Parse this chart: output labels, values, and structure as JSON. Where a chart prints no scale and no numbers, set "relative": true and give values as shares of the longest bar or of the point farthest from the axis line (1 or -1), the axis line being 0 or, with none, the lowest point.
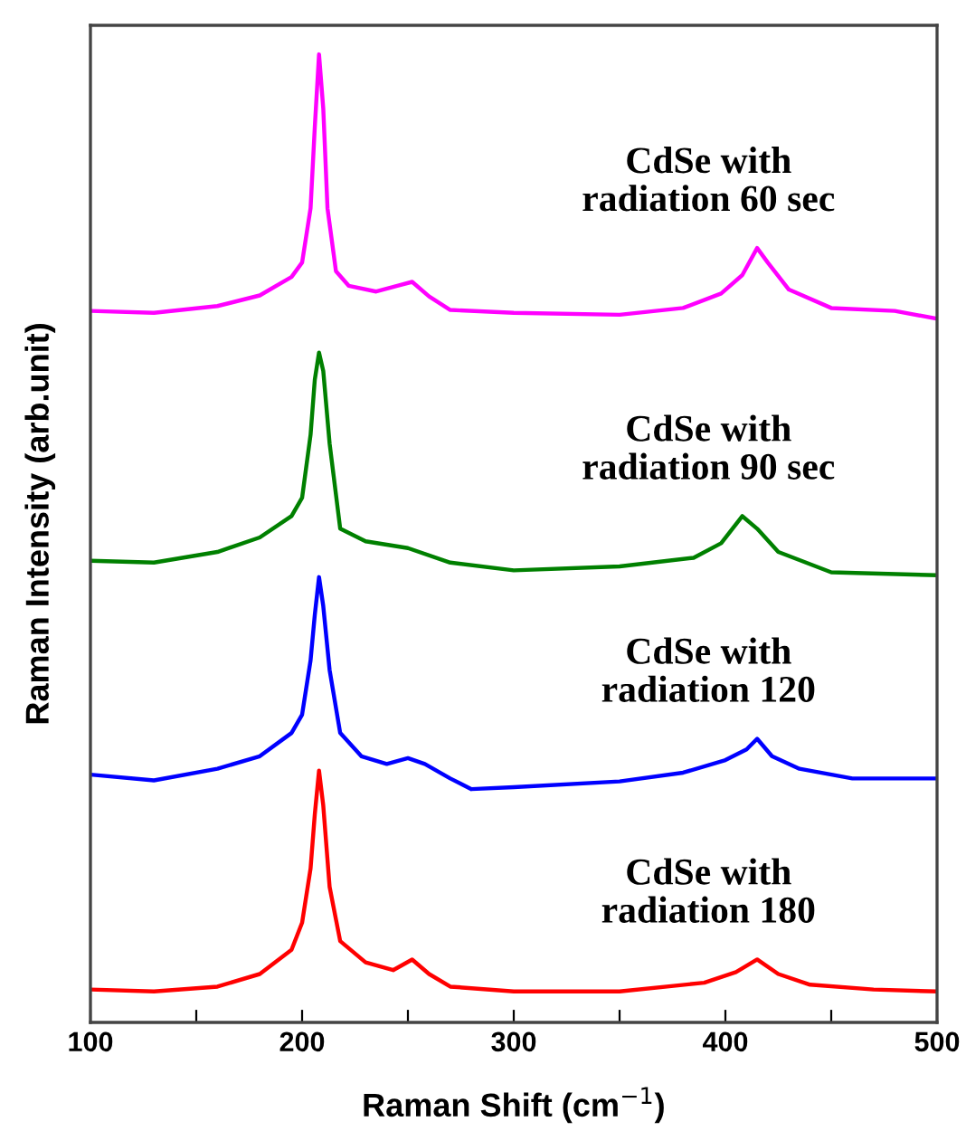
{
  "chart_data": {
    "type": "line",
    "relative": true,
    "xlabel": "Raman Shift (cm$^{−1}$)",
    "ylabel": "Raman Intensity (arb.unit)",
    "xlim": [
      100,
      500
    ],
    "xticks": [
      100,
      {
        "value": 150,
        "label": null
      },
      200,
      {
        "value": 250,
        "label": null
      },
      300,
      {
        "value": 350,
        "label": null
      },
      400,
      {
        "value": 450,
        "label": null
      },
      500
    ],
    "grid": false,
    "legend": false,
    "marker": "none",
    "line_style": "solid",
    "tick_labels": "x",
    "series": [
      {
        "name": "CdSe with\nradiation 60 sec",
        "color": "#ff00ff",
        "x": [
          100,
          130,
          160,
          180,
          195,
          200,
          204,
          206,
          208,
          210,
          212,
          216,
          222,
          235,
          245,
          252,
          260,
          270,
          300,
          350,
          380,
          398,
          408,
          415,
          420,
          430,
          450,
          480,
          500
        ],
        "values": [
          0.735,
          0.733,
          0.74,
          0.751,
          0.77,
          0.785,
          0.841,
          0.925,
          1.0,
          0.944,
          0.841,
          0.776,
          0.761,
          0.755,
          0.761,
          0.765,
          0.75,
          0.736,
          0.733,
          0.731,
          0.738,
          0.753,
          0.772,
          0.8,
          0.785,
          0.757,
          0.738,
          0.735,
          0.727
        ]
      },
      {
        "name": "CdSe with\nradiation 90 sec",
        "color": "#008000",
        "x": [
          100,
          130,
          160,
          180,
          195,
          200,
          204,
          206,
          208,
          210,
          213,
          218,
          230,
          250,
          270,
          300,
          350,
          385,
          398,
          408,
          415,
          425,
          450,
          500
        ],
        "values": [
          0.477,
          0.475,
          0.486,
          0.501,
          0.523,
          0.542,
          0.607,
          0.664,
          0.692,
          0.673,
          0.598,
          0.51,
          0.497,
          0.49,
          0.475,
          0.467,
          0.471,
          0.48,
          0.495,
          0.523,
          0.51,
          0.486,
          0.465,
          0.462
        ]
      },
      {
        "name": "CdSe with\nradiation 120",
        "color": "#0000ff",
        "x": [
          100,
          130,
          160,
          180,
          195,
          200,
          204,
          206,
          208,
          210,
          213,
          218,
          228,
          240,
          250,
          258,
          270,
          280,
          300,
          350,
          380,
          400,
          410,
          415,
          422,
          435,
          460,
          500
        ],
        "values": [
          0.256,
          0.25,
          0.262,
          0.275,
          0.299,
          0.318,
          0.374,
          0.421,
          0.46,
          0.43,
          0.364,
          0.299,
          0.275,
          0.267,
          0.273,
          0.267,
          0.252,
          0.241,
          0.243,
          0.249,
          0.258,
          0.271,
          0.282,
          0.293,
          0.275,
          0.262,
          0.252,
          0.252
        ]
      },
      {
        "name": "CdSe with\nradiation 180",
        "color": "#ff0000",
        "x": [
          100,
          130,
          160,
          180,
          195,
          200,
          204,
          206,
          208,
          210,
          213,
          218,
          230,
          243,
          252,
          260,
          270,
          300,
          350,
          390,
          405,
          415,
          425,
          440,
          470,
          500
        ],
        "values": [
          0.034,
          0.032,
          0.037,
          0.05,
          0.075,
          0.103,
          0.159,
          0.215,
          0.26,
          0.224,
          0.14,
          0.084,
          0.062,
          0.054,
          0.065,
          0.05,
          0.037,
          0.032,
          0.032,
          0.041,
          0.052,
          0.065,
          0.05,
          0.039,
          0.034,
          0.032
        ]
      }
    ]
  }
}
